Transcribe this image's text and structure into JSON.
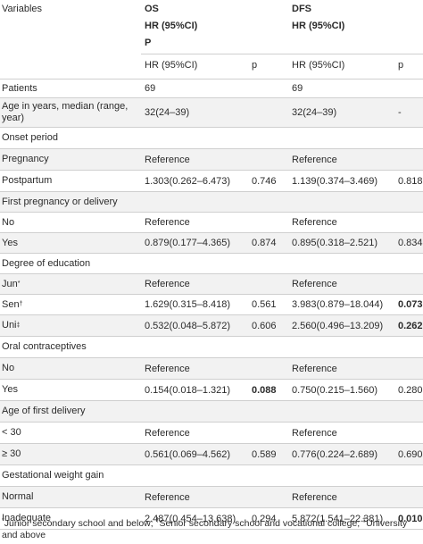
{
  "header": {
    "variables": "Variables",
    "os": "OS",
    "dfs": "DFS",
    "hr_top_os": "HR (95%CI)",
    "p_top_os": "P",
    "hr_top_dfs": "HR (95%CI)",
    "hr_os": "HR (95%CI)",
    "p_os": "p",
    "hr_dfs": "HR (95%CI)",
    "p_dfs": "p"
  },
  "rows": [
    {
      "label": "Patients",
      "os_hr": "69",
      "os_p": "",
      "dfs_hr": "69",
      "dfs_p": ""
    },
    {
      "label": "Age in years, median (range, year)",
      "os_hr": "32(24–39)",
      "os_p": "",
      "dfs_hr": "32(24–39)",
      "dfs_p": "-"
    },
    {
      "label": "Onset period",
      "os_hr": "",
      "os_p": "",
      "dfs_hr": "",
      "dfs_p": ""
    },
    {
      "label": "Pregnancy",
      "os_hr": "Reference",
      "os_p": "",
      "dfs_hr": "Reference",
      "dfs_p": ""
    },
    {
      "label": "Postpartum",
      "os_hr": "1.303(0.262–6.473)",
      "os_p": "0.746",
      "dfs_hr": "1.139(0.374–3.469)",
      "dfs_p": "0.818"
    },
    {
      "label": "First pregnancy or delivery",
      "os_hr": "",
      "os_p": "",
      "dfs_hr": "",
      "dfs_p": ""
    },
    {
      "label": "No",
      "os_hr": "Reference",
      "os_p": "",
      "dfs_hr": "Reference",
      "dfs_p": ""
    },
    {
      "label": "Yes",
      "os_hr": "0.879(0.177–4.365)",
      "os_p": "0.874",
      "dfs_hr": "0.895(0.318–2.521)",
      "dfs_p": "0.834"
    },
    {
      "label": "Degree of education",
      "os_hr": "",
      "os_p": "",
      "dfs_hr": "",
      "dfs_p": ""
    },
    {
      "label": "Jun",
      "mark": "*",
      "os_hr": "Reference",
      "os_p": "",
      "dfs_hr": "Reference",
      "dfs_p": ""
    },
    {
      "label": "Sen",
      "mark": "†",
      "os_hr": "1.629(0.315–8.418)",
      "os_p": "0.561",
      "dfs_hr": "3.983(0.879–18.044)",
      "dfs_p": "0.073"
    },
    {
      "label": "Uni",
      "mark": "‡",
      "os_hr": "0.532(0.048–5.872)",
      "os_p": "0.606",
      "dfs_hr": "2.560(0.496–13.209)",
      "dfs_p": "0.262"
    },
    {
      "label": "Oral contraceptives",
      "os_hr": "",
      "os_p": "",
      "dfs_hr": "",
      "dfs_p": ""
    },
    {
      "label": "No",
      "os_hr": "Reference",
      "os_p": "",
      "dfs_hr": "Reference",
      "dfs_p": ""
    },
    {
      "label": "Yes",
      "os_hr": "0.154(0.018–1.321)",
      "os_p": "0.088",
      "dfs_hr": "0.750(0.215–1.560)",
      "dfs_p": "0.280"
    },
    {
      "label": "Age of first delivery",
      "os_hr": "",
      "os_p": "",
      "dfs_hr": "",
      "dfs_p": ""
    },
    {
      "label": "< 30",
      "os_hr": "Reference",
      "os_p": "",
      "dfs_hr": "Reference",
      "dfs_p": ""
    },
    {
      "label": "≥ 30",
      "os_hr": "0.561(0.069–4.562)",
      "os_p": "0.589",
      "dfs_hr": "0.776(0.224–2.689)",
      "dfs_p": "0.690"
    },
    {
      "label": "Gestational weight gain",
      "os_hr": "",
      "os_p": "",
      "dfs_hr": "",
      "dfs_p": ""
    },
    {
      "label": "Normal",
      "os_hr": "Reference",
      "os_p": "",
      "dfs_hr": "Reference",
      "dfs_p": ""
    },
    {
      "label": "Inadequate",
      "os_hr": "2.487(0.454–13.638)",
      "os_p": "0.294",
      "dfs_hr": "5.872(1.541–22.381)",
      "dfs_p": "0.010"
    }
  ],
  "footnote": {
    "mark1": "*",
    "text1": "Junior secondary school and below; ",
    "mark2": "†",
    "text2": "Senior secondary school and vocational college; ",
    "mark3": "‡",
    "text3": "University and above"
  }
}
